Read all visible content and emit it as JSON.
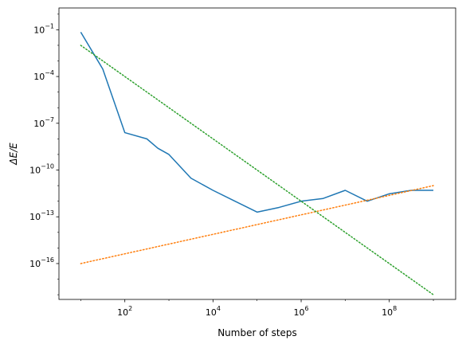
{
  "chart_data": {
    "type": "line",
    "title": "",
    "xlabel": "Number of steps",
    "ylabel": "ΔE/E",
    "xscale": "log",
    "yscale": "log",
    "xlim": [
      3.2,
      3200000000.0
    ],
    "ylim": [
      5e-19,
      2.5
    ],
    "grid": false,
    "legend": "none",
    "x_ticks": [
      {
        "base": "10",
        "exp": "2",
        "value": 100
      },
      {
        "base": "10",
        "exp": "4",
        "value": 10000
      },
      {
        "base": "10",
        "exp": "6",
        "value": 1000000
      },
      {
        "base": "10",
        "exp": "8",
        "value": 100000000
      }
    ],
    "y_ticks": [
      {
        "base": "10",
        "exp": "−1",
        "value": 0.1
      },
      {
        "base": "10",
        "exp": "−4",
        "value": 0.0001
      },
      {
        "base": "10",
        "exp": "−7",
        "value": 1e-07
      },
      {
        "base": "10",
        "exp": "−10",
        "value": 1e-10
      },
      {
        "base": "10",
        "exp": "−13",
        "value": 1e-13
      },
      {
        "base": "10",
        "exp": "−16",
        "value": 1e-16
      }
    ],
    "series": [
      {
        "color": "#1f77b4",
        "style": "solid",
        "x": [
          10,
          31.6,
          100,
          316,
          562,
          1000,
          3162,
          10000,
          31623,
          100000,
          316228,
          1000000,
          3162278,
          10000000,
          31622777,
          100000000,
          316227766,
          1000000000
        ],
        "y": [
          0.07,
          0.0003,
          2.5e-08,
          1e-08,
          2.5e-09,
          1e-09,
          3e-11,
          5e-12,
          1e-12,
          2e-13,
          4e-13,
          1e-12,
          1.5e-12,
          5e-12,
          1e-12,
          3e-12,
          5e-12,
          5e-12
        ]
      },
      {
        "color": "#ff7f0e",
        "style": "dotted",
        "x": [
          10,
          1000000000
        ],
        "y": [
          1e-16,
          1e-11
        ]
      },
      {
        "color": "#2ca02c",
        "style": "dotted",
        "x": [
          10,
          1000000000
        ],
        "y": [
          0.01,
          1e-18
        ]
      }
    ]
  }
}
